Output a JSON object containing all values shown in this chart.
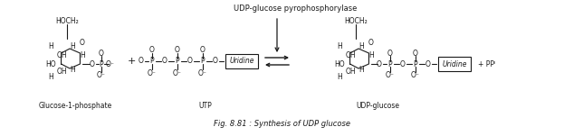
{
  "title": "Fig. 8.81 : Synthesis of UDP glucose",
  "enzyme_label": "UDP-glucose pyrophosphorylase",
  "bg_color": "#ffffff",
  "lc": "#1a1a1a",
  "tc": "#1a1a1a",
  "fig_width": 6.23,
  "fig_height": 1.51,
  "dpi": 100,
  "glucose1p_label": "Glucose-1-phosphate",
  "utp_label": "UTP",
  "udpglucose_label": "UDP-glucose"
}
